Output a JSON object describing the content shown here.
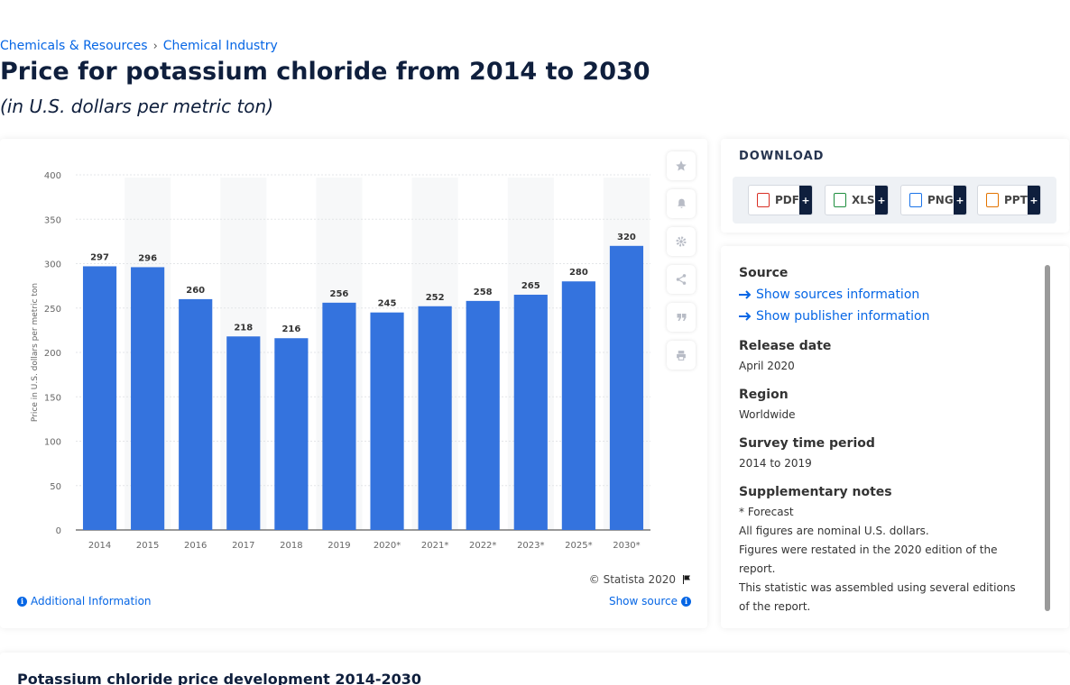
{
  "breadcrumb": {
    "items": [
      "Chemicals & Resources",
      "Chemical Industry"
    ],
    "separator": "›"
  },
  "header": {
    "title": "Price for potassium chloride from 2014 to 2030",
    "subtitle": "(in U.S. dollars per metric ton)"
  },
  "chart_data": {
    "type": "bar",
    "categories": [
      "2014",
      "2015",
      "2016",
      "2017",
      "2018",
      "2019",
      "2020*",
      "2021*",
      "2022*",
      "2023*",
      "2025*",
      "2030*"
    ],
    "values": [
      297,
      296,
      260,
      218,
      216,
      256,
      245,
      252,
      258,
      265,
      280,
      320
    ],
    "ylabel": "Price in U.S. dollars per metric ton",
    "yticks": [
      0,
      50,
      100,
      150,
      200,
      250,
      300,
      350,
      400
    ],
    "ylim": [
      0,
      400
    ],
    "bar_color": "#3473de",
    "grid": true,
    "data_labels": true
  },
  "chart_footer": {
    "credit": "© Statista 2020",
    "additional_info": "Additional Information",
    "show_source": "Show source"
  },
  "side_tools": [
    "star-icon",
    "bell-icon",
    "gear-icon",
    "share-icon",
    "quote-icon",
    "print-icon"
  ],
  "download": {
    "title": "DOWNLOAD",
    "buttons": [
      {
        "label": "PDF",
        "color": "#d93025"
      },
      {
        "label": "XLS",
        "color": "#1e8e3e"
      },
      {
        "label": "PNG",
        "color": "#1a73e8"
      },
      {
        "label": "PPT",
        "color": "#e37400"
      }
    ],
    "plus": "+"
  },
  "source": {
    "heading": "Source",
    "links": [
      "Show sources information",
      "Show publisher information"
    ],
    "release_date": {
      "label": "Release date",
      "value": "April 2020"
    },
    "region": {
      "label": "Region",
      "value": "Worldwide"
    },
    "survey_period": {
      "label": "Survey time period",
      "value": "2014 to 2019"
    },
    "notes": {
      "label": "Supplementary notes",
      "lines": [
        "* Forecast",
        "All figures are nominal U.S. dollars.",
        "Figures were restated in the 2020 edition of the report.",
        "This statistic was assembled using several editions of the report."
      ]
    }
  },
  "bottom": {
    "title": "Potassium chloride price development 2014-2030"
  }
}
